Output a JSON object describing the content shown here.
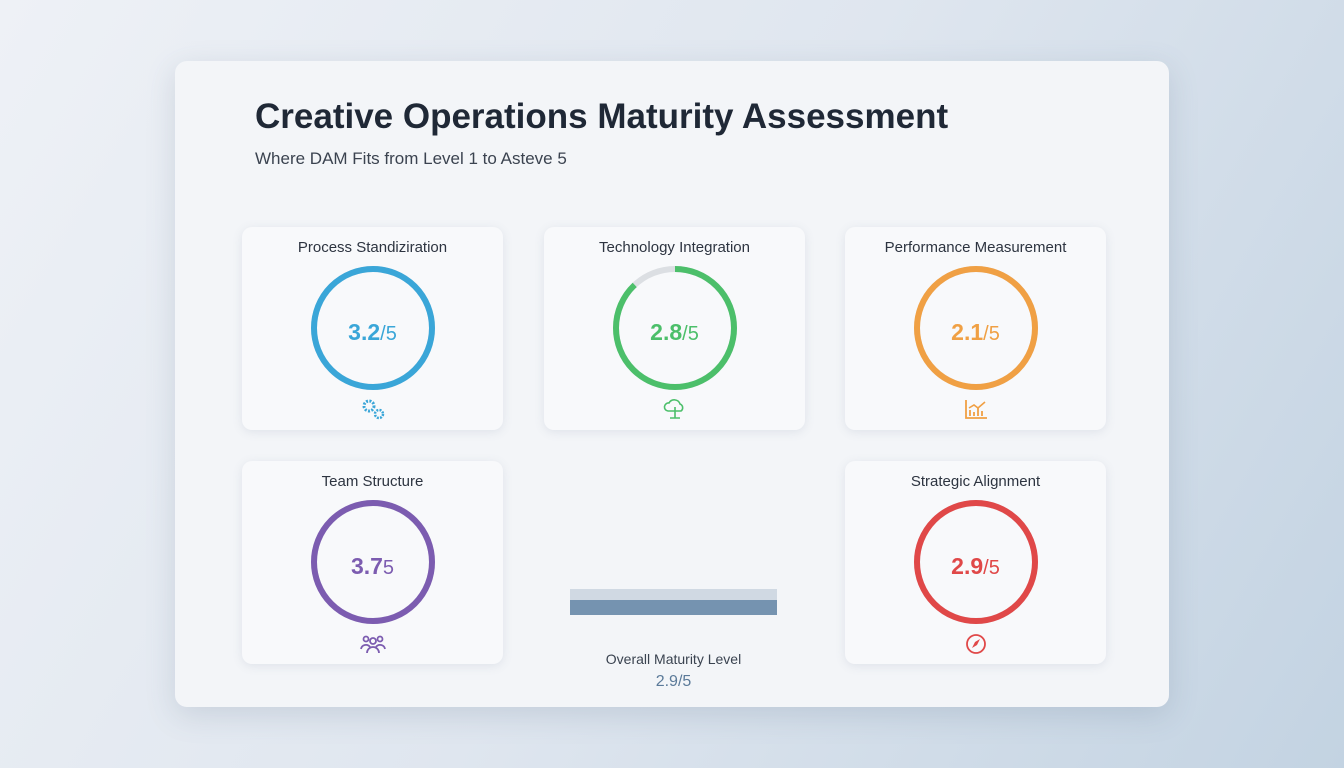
{
  "header": {
    "title": "Creative Operations Maturity Assessment",
    "subtitle": "Where DAM Fits from Level 1 to Asteve 5"
  },
  "cards": [
    {
      "label": "Process Standiziration",
      "value": "3.2",
      "denominator": "/5",
      "color": "#3aa6d8",
      "icon": "gears-icon",
      "score": 3.2
    },
    {
      "label": "Technology Integration",
      "value": "2.8",
      "denominator": "/5",
      "color": "#4cbf6a",
      "icon": "cloud-network-icon",
      "score": 2.8
    },
    {
      "label": "Performance Measurement",
      "value": "2.1",
      "denominator": "/5",
      "color": "#f0a044",
      "icon": "bar-chart-icon",
      "score": 2.1
    },
    {
      "label": "Team Structure",
      "value": "3.7",
      "denominator": "5",
      "color": "#7c5cb0",
      "icon": "team-icon",
      "score": 3.7
    },
    {
      "label": "Strategic Alignment",
      "value": "2.9",
      "denominator": "/5",
      "color": "#e04848",
      "icon": "compass-icon",
      "score": 2.9
    }
  ],
  "overall": {
    "label": "Overall Maturity Level",
    "value": "2.9/5",
    "score": 2.9,
    "color": "#7593b0"
  }
}
